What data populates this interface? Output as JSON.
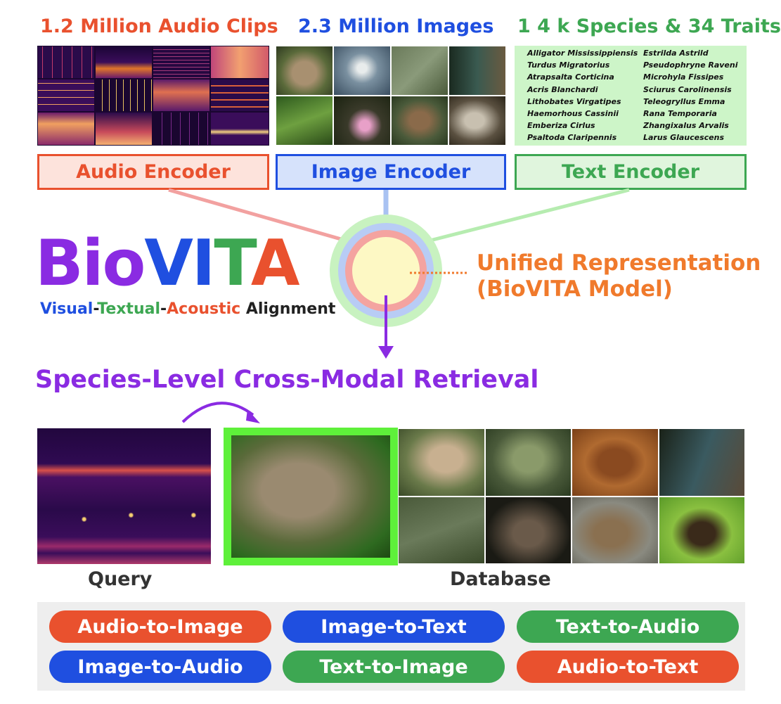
{
  "headers": {
    "audio": "1.2 Million Audio Clips",
    "image": "2.3 Million Images",
    "text": "1 4 k Species & 34 Traits"
  },
  "species_left": [
    "Alligator Mississippiensis",
    "Turdus Migratorius",
    "Atrapsalta Corticina",
    "Acris Blanchardi",
    "Lithobates Virgatipes",
    "Haemorhous Cassinii",
    "Emberiza Cirlus",
    "Psaltoda Claripennis"
  ],
  "species_right": [
    "Estrilda Astrild",
    "Pseudophryne Raveni",
    "Microhyla Fissipes",
    "Sciurus Carolinensis",
    "Teleogryllus Emma",
    "Rana Temporaria",
    "Zhangixalus Arvalis",
    "Larus Glaucescens"
  ],
  "encoders": {
    "audio": "Audio Encoder",
    "image": "Image Encoder",
    "text": "Text Encoder"
  },
  "logo": {
    "bio": "Bio",
    "vi": "VI",
    "t": "T",
    "a": "A",
    "tagline_visual": "Visual",
    "tagline_dash1": "-",
    "tagline_textual": "Textual",
    "tagline_dash2": "-",
    "tagline_acoustic": "Acoustic",
    "tagline_alignment": " Alignment"
  },
  "unified": {
    "line1": "Unified Representation",
    "line2": "(BioVITA Model)"
  },
  "retrieval_title": "Species-Level Cross-Modal Retrieval",
  "query_label": "Query",
  "database_label": "Database",
  "tasks": [
    {
      "label": "Audio-to-Image",
      "color": "#e9512e"
    },
    {
      "label": "Image-to-Text",
      "color": "#1f4fe0"
    },
    {
      "label": "Text-to-Audio",
      "color": "#3da752"
    },
    {
      "label": "Image-to-Audio",
      "color": "#1f4fe0"
    },
    {
      "label": "Text-to-Image",
      "color": "#3da752"
    },
    {
      "label": "Audio-to-Text",
      "color": "#e9512e"
    }
  ],
  "colors": {
    "audio": "#e9512e",
    "image": "#1f4fe0",
    "text": "#3da752",
    "purple": "#8a2be2",
    "unified": "#f07a2c"
  }
}
